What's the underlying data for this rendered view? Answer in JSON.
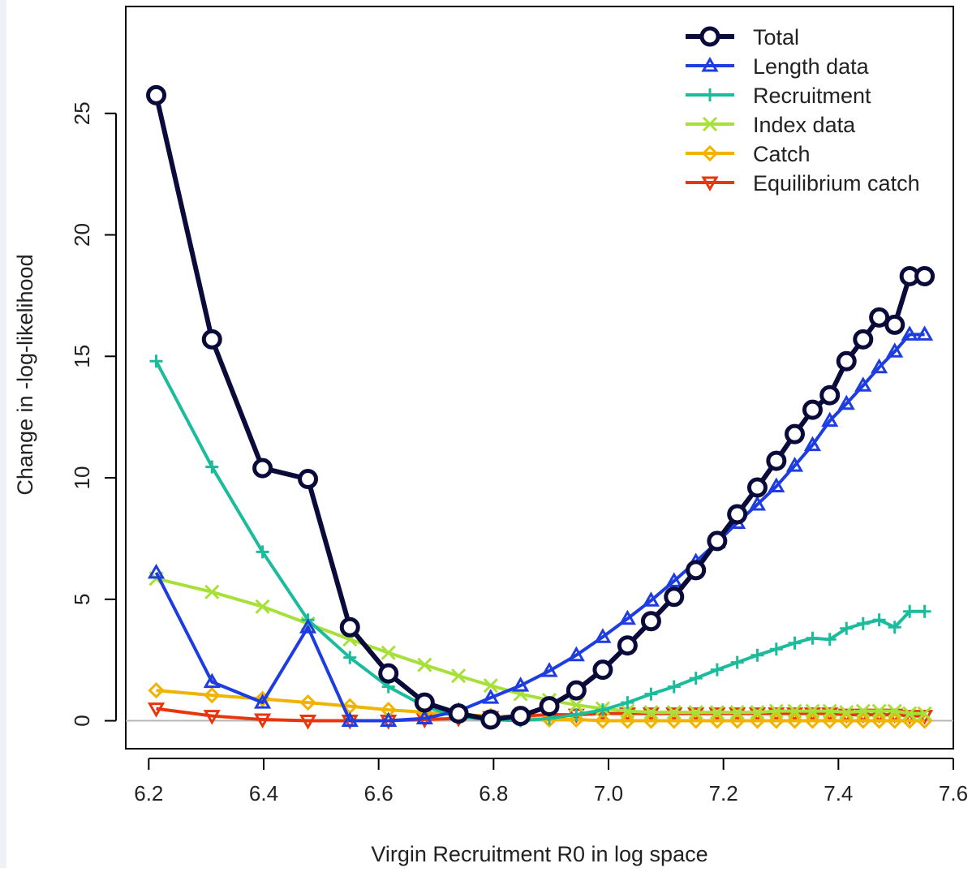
{
  "chart_data": {
    "type": "line",
    "title": "",
    "xlabel": "Virgin Recruitment R0 in log space",
    "ylabel": "Change in -log-likelihood",
    "xlim": [
      6.16,
      7.6
    ],
    "ylim": [
      -1.15,
      29.4
    ],
    "xticks": [
      "6.2",
      "6.4",
      "6.6",
      "6.8",
      "7.0",
      "7.2",
      "7.4",
      "7.6"
    ],
    "yticks": [
      "0",
      "5",
      "10",
      "15",
      "20",
      "25"
    ],
    "grid": false,
    "zero_line": true,
    "legend_position": "top-right",
    "x": [
      6.213,
      6.31,
      6.398,
      6.477,
      6.55,
      6.617,
      6.68,
      6.739,
      6.795,
      6.847,
      6.897,
      6.944,
      6.99,
      7.033,
      7.074,
      7.114,
      7.152,
      7.189,
      7.224,
      7.259,
      7.292,
      7.324,
      7.355,
      7.385,
      7.414,
      7.443,
      7.471,
      7.498,
      7.524,
      7.55
    ],
    "series": [
      {
        "name": "Total",
        "color": "#0b0b3b",
        "marker": "circle",
        "values": [
          25.75,
          15.7,
          10.4,
          9.95,
          3.85,
          1.95,
          0.75,
          0.3,
          0.05,
          0.2,
          0.6,
          1.25,
          2.1,
          3.1,
          4.1,
          5.1,
          6.2,
          7.4,
          8.5,
          9.6,
          10.7,
          11.8,
          12.8,
          13.4,
          14.8,
          15.7,
          16.6,
          16.3,
          18.3,
          18.3
        ]
      },
      {
        "name": "Length data",
        "color": "#1e3de0",
        "marker": "triangle-up",
        "values": [
          6.1,
          1.6,
          0.75,
          3.85,
          0.0,
          0.0,
          0.1,
          0.4,
          0.95,
          1.45,
          2.05,
          2.7,
          3.45,
          4.2,
          4.95,
          5.75,
          6.55,
          7.35,
          8.15,
          8.9,
          9.65,
          10.5,
          11.35,
          12.35,
          13.05,
          13.8,
          14.55,
          15.2,
          15.9,
          15.9
        ]
      },
      {
        "name": "Recruitment",
        "color": "#1abc9c",
        "marker": "plus",
        "values": [
          14.8,
          10.45,
          6.95,
          4.15,
          2.6,
          1.4,
          0.6,
          0.15,
          0.05,
          0.0,
          0.1,
          0.25,
          0.45,
          0.75,
          1.1,
          1.4,
          1.75,
          2.1,
          2.4,
          2.7,
          2.95,
          3.2,
          3.4,
          3.35,
          3.8,
          4.0,
          4.15,
          3.85,
          4.5,
          4.5
        ]
      },
      {
        "name": "Index data",
        "color": "#a8e03a",
        "marker": "cross",
        "values": [
          5.85,
          5.3,
          4.7,
          4.0,
          3.35,
          2.8,
          2.3,
          1.85,
          1.45,
          1.1,
          0.85,
          0.65,
          0.5,
          0.4,
          0.35,
          0.35,
          0.35,
          0.35,
          0.35,
          0.35,
          0.4,
          0.4,
          0.4,
          0.4,
          0.35,
          0.4,
          0.4,
          0.4,
          0.3,
          0.3
        ]
      },
      {
        "name": "Catch",
        "color": "#f0b400",
        "marker": "diamond",
        "values": [
          1.25,
          1.05,
          0.9,
          0.75,
          0.6,
          0.45,
          0.35,
          0.25,
          0.2,
          0.1,
          0.05,
          0.05,
          0.0,
          0.0,
          0.0,
          0.0,
          0.0,
          0.0,
          0.0,
          0.0,
          0.0,
          0.0,
          0.0,
          0.0,
          0.0,
          0.0,
          0.0,
          0.0,
          0.0,
          0.0
        ]
      },
      {
        "name": "Equilibrium catch",
        "color": "#e8350d",
        "marker": "triangle-down",
        "values": [
          0.5,
          0.2,
          0.05,
          0.0,
          0.0,
          0.0,
          0.05,
          0.1,
          0.15,
          0.2,
          0.25,
          0.25,
          0.3,
          0.3,
          0.3,
          0.3,
          0.3,
          0.3,
          0.3,
          0.3,
          0.3,
          0.3,
          0.3,
          0.3,
          0.25,
          0.25,
          0.25,
          0.25,
          0.2,
          0.2
        ]
      }
    ]
  }
}
